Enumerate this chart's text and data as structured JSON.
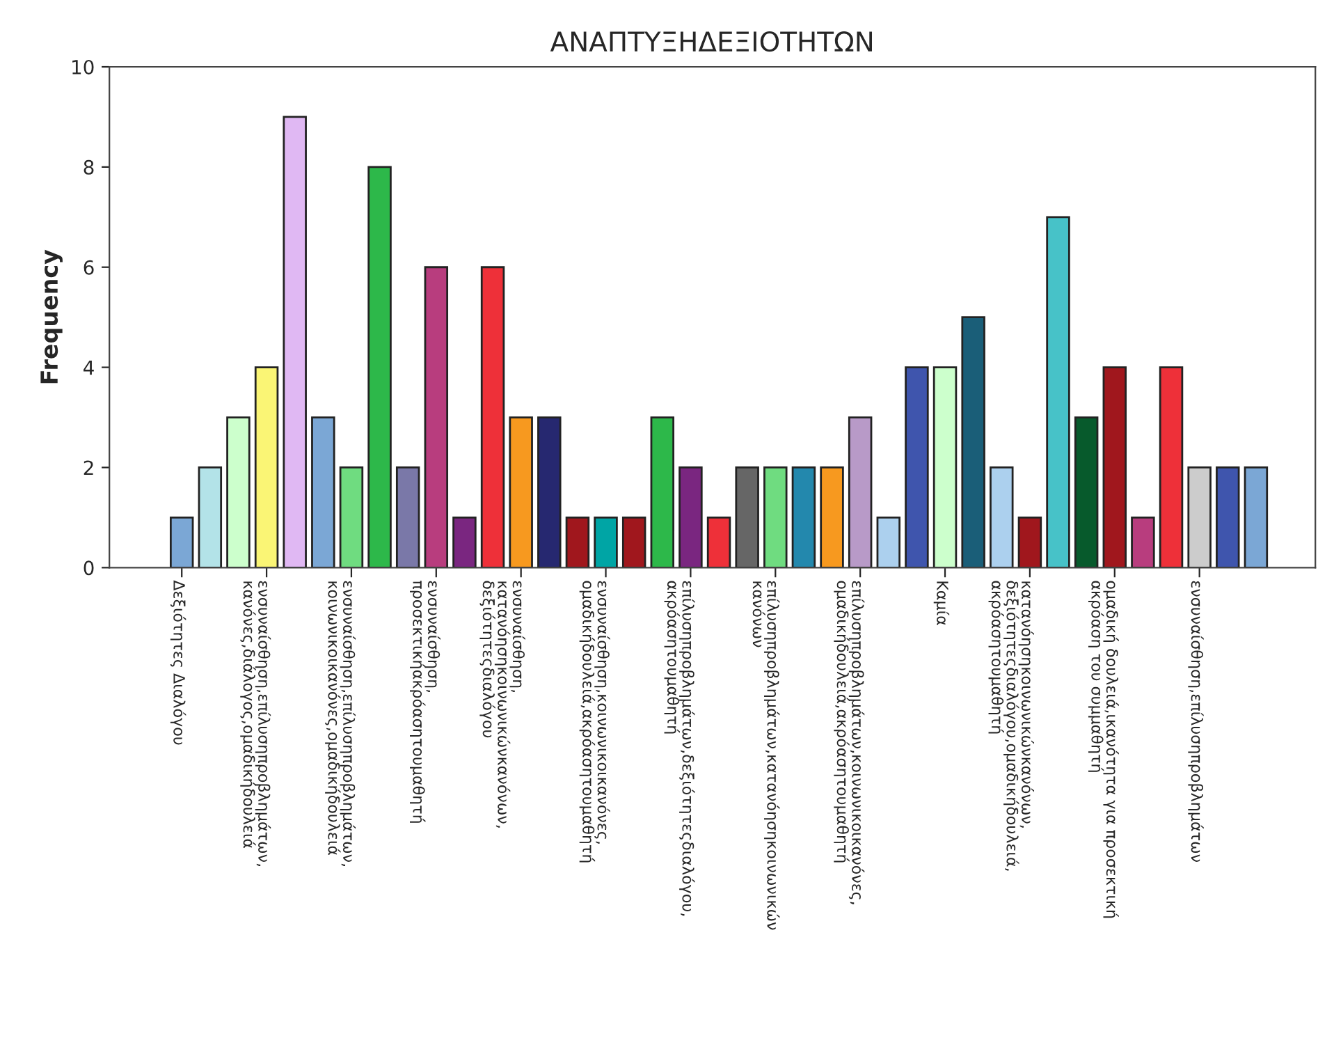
{
  "chart_data": {
    "type": "bar",
    "title": "ΑΝΑΠΤΥΞΗΔΕΞΙΟΤΗΤΩΝ",
    "ylabel": "Frequency",
    "categories": [
      "Δεξιότητες Διαλόγου",
      null,
      null,
      "ενσυναίσθηση,επίλυσηπροβλημάτων,\nκανόνες,διάλογος,ομαδικήδουλειά",
      null,
      null,
      "ενσυναίσθηση,επίλυσηπροβλημάτων,\nκοινωνικοικανόνες,ομαδικήδουλειά",
      null,
      null,
      "ενσυναίσθηση,\nπροσεκτικήακρόασητουμαθητή",
      null,
      null,
      "ενσυναίσθηση,\nκατανόησηκοινωνικώνκανόνων,\nδεξιότητεςδιαλόγου",
      null,
      null,
      "ενσυναίσθηση,κοινωνικοικανόνες,\nομαδικήδουλειά,ακρόασητουμαθητή",
      null,
      null,
      "επίλυσηπροβλημάτων,δεξιότητεςδιαλόγου,\nακρόασητουμαθητή",
      null,
      null,
      "επίλυσηπροβλημάτων,κατανόησηκοινωνικών\nκανόνων",
      null,
      null,
      "επίλυσηπροβλημάτων,κοινωνικοικανόνες,\nομαδικήδουλειά,ακρόασητουμαθητή",
      null,
      null,
      "Καμία",
      null,
      null,
      "κατανόησηκοινωνικώνκανόνων,\nδεξιότητεςδιαλόγου,ομαδικήδουλειά,\nακρόασητουμαθητή",
      null,
      null,
      "ομαδική δουλειά,ικανότητα για προσεκτική\nακρόαση του συμμαθητή",
      null,
      null,
      "ενσυναίσθηση,επίλυσηπροβλημάτων",
      null,
      null
    ],
    "values": [
      1,
      2,
      3,
      4,
      9,
      3,
      2,
      8,
      2,
      6,
      1,
      6,
      3,
      3,
      1,
      1,
      1,
      3,
      2,
      1,
      2,
      2,
      2,
      2,
      3,
      1,
      4,
      4,
      5,
      2,
      1,
      7,
      3,
      4,
      1,
      4,
      2,
      2,
      2
    ],
    "colors": [
      "#7ba7d5",
      "#b3e3e8",
      "#ccffcc",
      "#faf575",
      "#e0b8f3",
      "#7ba7d5",
      "#6fdc80",
      "#2db84a",
      "#7a78a8",
      "#b83d7e",
      "#7a2680",
      "#ee3039",
      "#f7991f",
      "#262870",
      "#a0171d",
      "#00a5a5",
      "#a0171d",
      "#2db84a",
      "#7a2680",
      "#ee3039",
      "#666666",
      "#6fdc80",
      "#2388ad",
      "#f7991f",
      "#b89ac8",
      "#acd0ee",
      "#3f55ad",
      "#ccffcc",
      "#1a5e78",
      "#acd0ee",
      "#a0171d",
      "#47c2c8",
      "#075a2c",
      "#a0171d",
      "#b83d7e",
      "#ee3039",
      "#cccccc",
      "#3f55ad",
      "#7ba7d5"
    ],
    "ylim": [
      0,
      10
    ],
    "yticks": [
      0,
      2,
      4,
      6,
      8,
      10
    ],
    "grid": false
  }
}
